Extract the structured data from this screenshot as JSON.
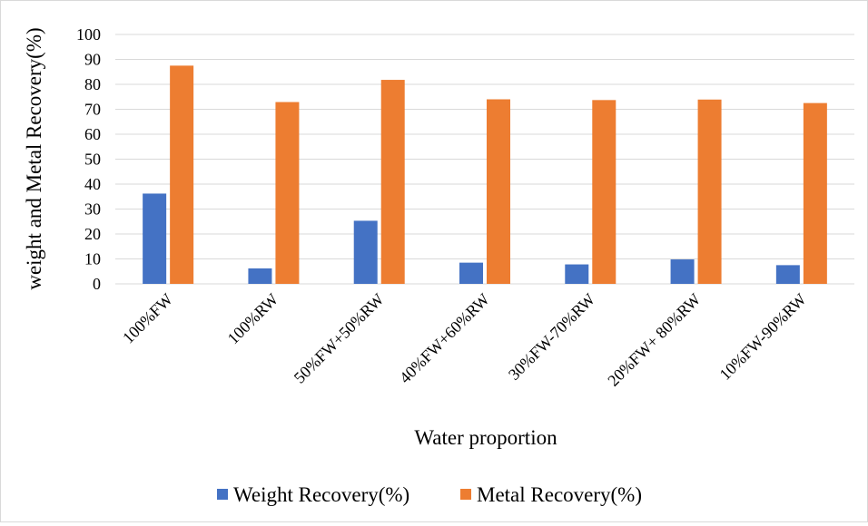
{
  "chart_data": {
    "type": "bar",
    "title": "",
    "xlabel": "Water proportion",
    "ylabel": "weight  and Metal Recovery(%)",
    "categories": [
      "100%FW",
      "100%RW",
      "50%FW+50%RW",
      "40%FW+60%RW",
      "30%FW-70%RW",
      "20%FW+ 80%RW",
      "10%FW-90%RW"
    ],
    "series": [
      {
        "name": "Weight Recovery(%)",
        "color": "#4472c4",
        "values": [
          36.2,
          6.2,
          25.3,
          8.5,
          7.8,
          9.8,
          7.5
        ]
      },
      {
        "name": "Metal Recovery(%)",
        "color": "#ed7d31",
        "values": [
          87.5,
          72.9,
          81.8,
          74.0,
          73.7,
          73.9,
          72.5
        ]
      }
    ],
    "yticks": [
      0,
      10,
      20,
      30,
      40,
      50,
      60,
      70,
      80,
      90,
      100
    ],
    "ylim": [
      0,
      100
    ],
    "grid": true,
    "legend_position": "bottom",
    "gridline_color": "#d9d9d9"
  }
}
